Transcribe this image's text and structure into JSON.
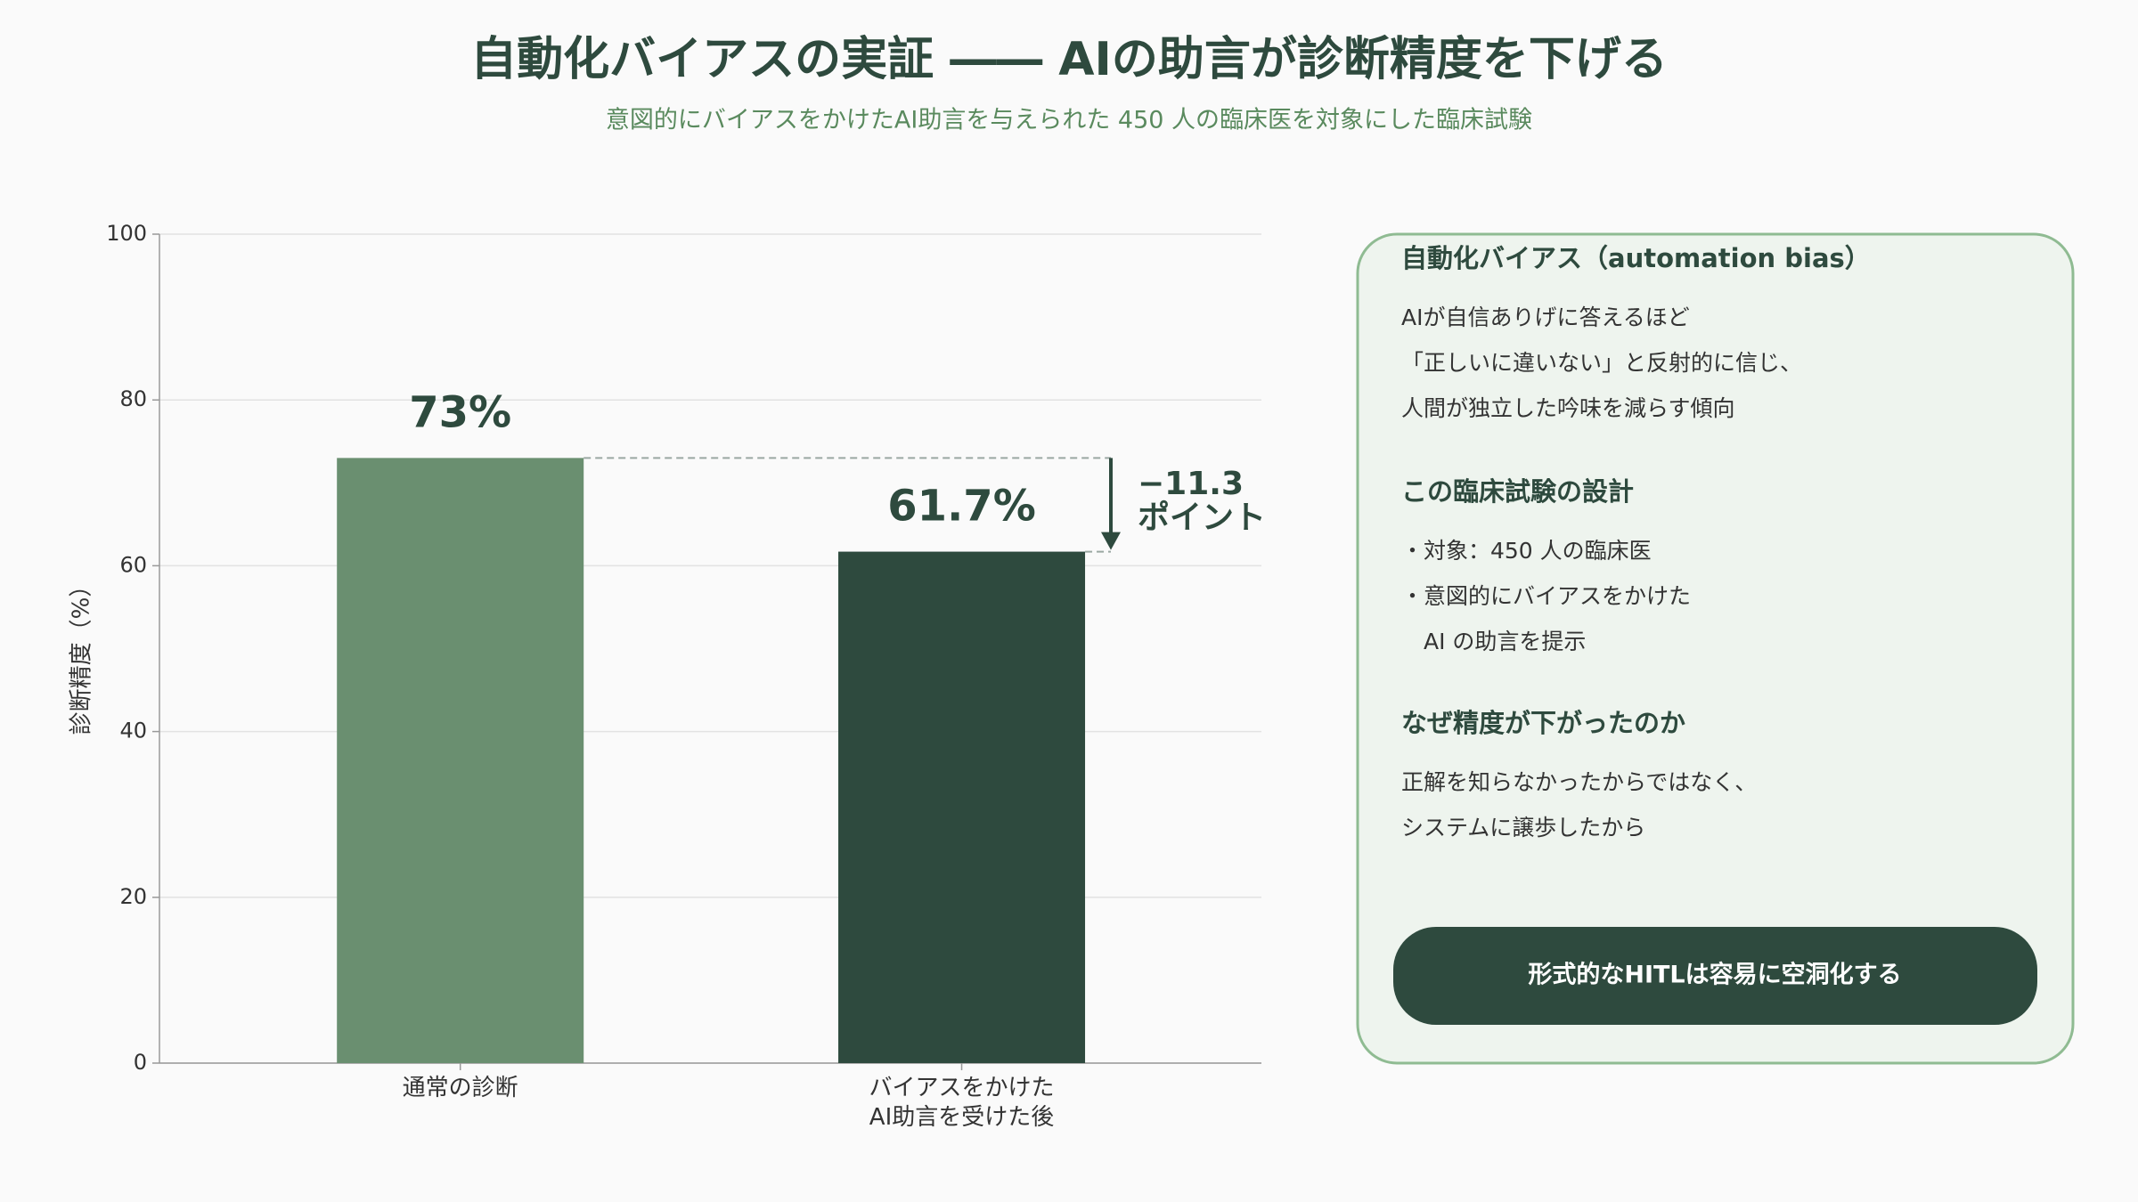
{
  "chart_data": {
    "type": "bar",
    "title": "自動化バイアスの実証 ―― AIの助言が診断精度を下げる",
    "subtitle": "意図的にバイアスをかけたAI助言を与えられた 450 人の臨床医を対象にした臨床試験",
    "y_label": "診断精度（%）",
    "categories": [
      "通常の診断",
      "バイアスをかけた\nAI助言を受けた後"
    ],
    "series": [
      {
        "values": [
          73,
          61.7
        ],
        "value_labels": [
          "73%",
          "61.7%"
        ],
        "colors": [
          "#6a8f70",
          "#2e4a3e"
        ]
      }
    ],
    "ylim": [
      0,
      100
    ],
    "yticks": [
      0,
      20,
      40,
      60,
      80,
      100
    ],
    "grid": true,
    "annotation": [
      "−11.3",
      "ポイント"
    ]
  },
  "panel": {
    "sections": [
      {
        "heading": "自動化バイアス（automation bias）",
        "lines": [
          "AIが自信ありげに答えるほど",
          "「正しいに違いない」と反射的に信じ、",
          "人間が独立した吟味を減らす傾向"
        ]
      },
      {
        "heading": "この臨床試験の設計",
        "lines": [
          "・対象：450 人の臨床医",
          "・意図的にバイアスをかけた",
          "AI の助言を提示"
        ]
      },
      {
        "heading": "なぜ精度が下がったのか",
        "lines": [
          "正解を知らなかったからではなく、",
          "システムに譲歩したから"
        ]
      }
    ],
    "callout": "形式的なHITLは容易に空洞化する"
  }
}
